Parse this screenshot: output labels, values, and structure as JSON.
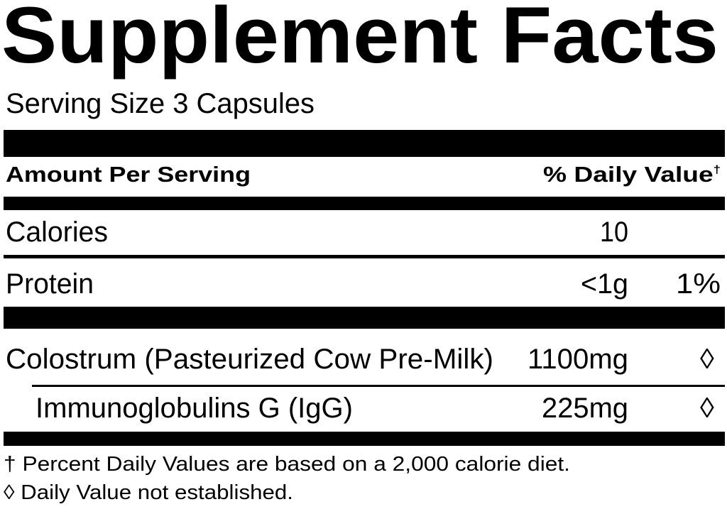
{
  "title": "Supplement Facts",
  "serving_size": "Serving Size 3 Capsules",
  "header": {
    "amount_per_serving": "Amount Per Serving",
    "daily_value": "% Daily Value",
    "daily_value_mark": "†"
  },
  "rows": [
    {
      "name": "Calories",
      "amount": "10",
      "dv": ""
    },
    {
      "name": "Protein",
      "amount": "<1g",
      "dv": "1%"
    },
    {
      "name": "Colostrum (Pasteurized Cow Pre-Milk)",
      "amount": "1100mg",
      "dv": "◊"
    },
    {
      "name": "Immunoglobulins G (IgG)",
      "amount": "225mg",
      "dv": "◊"
    }
  ],
  "footnotes": [
    "† Percent Daily Values are based on a 2,000 calorie diet.",
    "◊ Daily Value not established."
  ]
}
